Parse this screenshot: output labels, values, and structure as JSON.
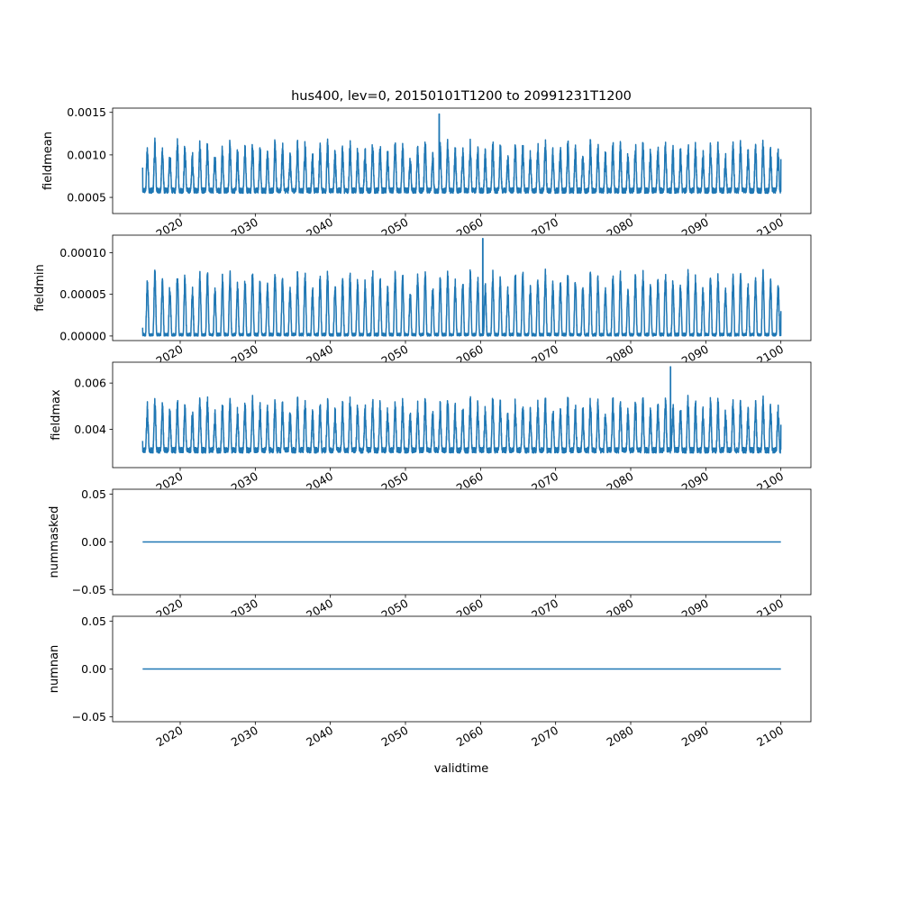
{
  "chart_data": {
    "type": "line",
    "title": "hus400, lev=0, 20150101T1200 to 20991231T1200",
    "xlabel": "validtime",
    "x_range": [
      "2015-01-01T12:00",
      "2099-12-31T12:00"
    ],
    "xlim": [
      "2011-01-01",
      "2104-01-01"
    ],
    "x_ticks": [
      "2020",
      "2030",
      "2040",
      "2050",
      "2060",
      "2070",
      "2080",
      "2090",
      "2100"
    ],
    "line_color": "#1f77b4",
    "grid": false,
    "panels": [
      {
        "ylabel": "fieldmean",
        "ylim": [
          0.00031,
          0.00155
        ],
        "y_ticks": [
          {
            "value": 0.0005,
            "label": "0.0005"
          },
          {
            "value": 0.001,
            "label": "0.0010"
          },
          {
            "value": 0.0015,
            "label": "0.0015"
          }
        ],
        "series": {
          "kind": "seasonal",
          "base": 0.00058,
          "amplitude": 0.00046,
          "noise": 8e-05,
          "floor": 0.00035,
          "peak": 0.00148,
          "peak_year": 2054.5,
          "start": 0.00085,
          "end": 0.00095
        }
      },
      {
        "ylabel": "fieldmin",
        "ylim": [
          -5.5e-06,
          0.000121
        ],
        "y_ticks": [
          {
            "value": 0,
            "label": "0.00000"
          },
          {
            "value": 5e-05,
            "label": "0.00005"
          },
          {
            "value": 0.0001,
            "label": "0.00010"
          }
        ],
        "series": {
          "kind": "seasonal",
          "base": 1e-06,
          "amplitude": 6.5e-05,
          "noise": 6e-06,
          "floor": 0.0,
          "peak": 0.000117,
          "peak_year": 2060.3,
          "start": 1e-05,
          "end": 3e-05
        }
      },
      {
        "ylabel": "fieldmax",
        "ylim": [
          0.00235,
          0.0069
        ],
        "y_ticks": [
          {
            "value": 0.004,
            "label": "0.004"
          },
          {
            "value": 0.006,
            "label": "0.006"
          }
        ],
        "series": {
          "kind": "seasonal",
          "base": 0.0031,
          "amplitude": 0.0018,
          "noise": 0.0003,
          "floor": 0.0025,
          "peak": 0.0067,
          "peak_year": 2085.3,
          "start": 0.0035,
          "end": 0.0042
        }
      },
      {
        "ylabel": "nummasked",
        "ylim": [
          -0.055,
          0.055
        ],
        "y_ticks": [
          {
            "value": -0.05,
            "label": "−0.05"
          },
          {
            "value": 0,
            "label": "0.00"
          },
          {
            "value": 0.05,
            "label": "0.05"
          }
        ],
        "series": {
          "kind": "constant",
          "value": 0
        }
      },
      {
        "ylabel": "numnan",
        "ylim": [
          -0.055,
          0.055
        ],
        "y_ticks": [
          {
            "value": -0.05,
            "label": "−0.05"
          },
          {
            "value": 0,
            "label": "0.00"
          },
          {
            "value": 0.05,
            "label": "0.05"
          }
        ],
        "series": {
          "kind": "constant",
          "value": 0
        }
      }
    ]
  }
}
